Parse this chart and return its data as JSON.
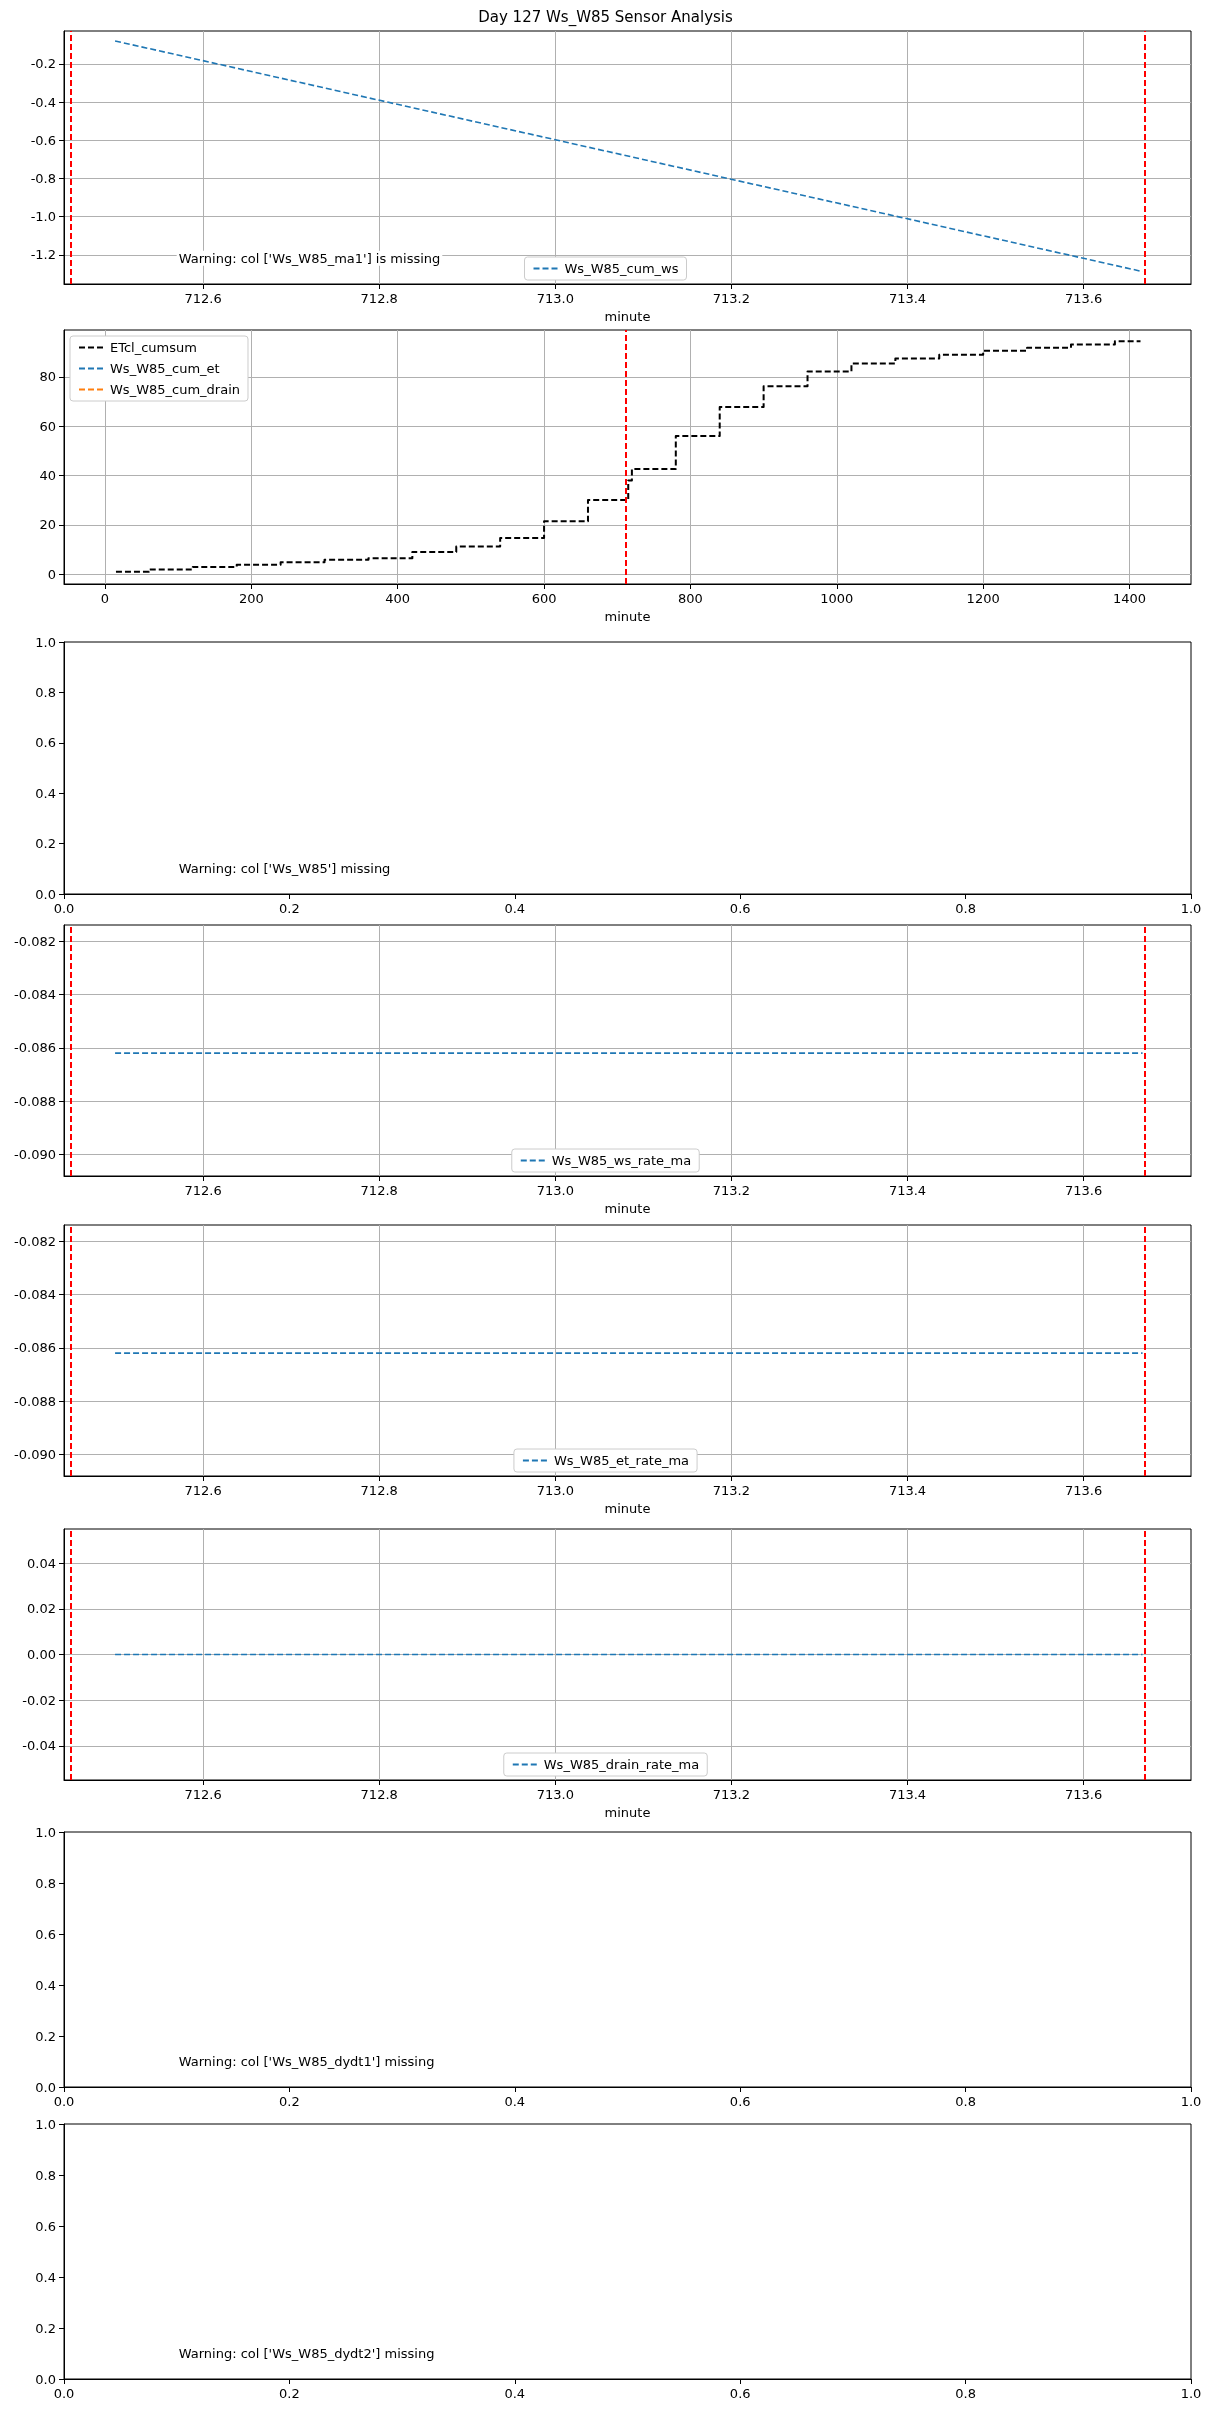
{
  "chart_data": [
    {
      "type": "line",
      "title": "Day 127 Ws_W85 Sensor Analysis",
      "xlabel": "minute",
      "series": [
        {
          "name": "Ws_W85_cum_ws",
          "color": "#1f77b4",
          "x": [
            712.5,
            713.667
          ],
          "values": [
            -0.08,
            -1.287
          ]
        }
      ],
      "line_style": "dashed",
      "xlim": [
        712.442,
        713.722
      ],
      "xticks": [
        712.6,
        712.8,
        {
          "value": 713,
          "label": "713.0"
        },
        713.2,
        713.4,
        713.6
      ],
      "ylim": [
        -1.352,
        -0.028
      ],
      "yticks": [
        -1.2,
        {
          "value": -1,
          "label": "-1.0"
        },
        -0.8,
        -0.6,
        -0.4,
        -0.2
      ],
      "grid": true,
      "legend": "bottom",
      "ref_lines": [
        {
          "axis": "x",
          "value": 712.45,
          "color": "#ff0000",
          "line_style": "dashed"
        },
        {
          "axis": "x",
          "value": 713.67,
          "color": "#ff0000",
          "line_style": "dashed"
        }
      ],
      "annotations": [
        "Warning: col ['Ws_W85_ma1'] is missing"
      ]
    },
    {
      "type": "step",
      "xlabel": "minute",
      "series": [
        {
          "name": "ETcl_cumsum",
          "color": "#000000",
          "x": [
            15,
            60,
            120,
            180,
            240,
            300,
            360,
            420,
            480,
            540,
            600,
            660,
            715,
            720,
            780,
            840,
            900,
            960,
            1020,
            1080,
            1140,
            1200,
            1260,
            1320,
            1380,
            1415
          ],
          "values": [
            1,
            1.9,
            2.9,
            3.8,
            4.8,
            5.8,
            6.4,
            9,
            11.2,
            14.7,
            21.4,
            30.1,
            38,
            42.6,
            56,
            67.8,
            76.2,
            82.2,
            85.4,
            87.4,
            89,
            90.6,
            91.8,
            93.1,
            94.4,
            94.4
          ]
        },
        {
          "name": "Ws_W85_cum_et",
          "color": "#1f77b4"
        },
        {
          "name": "Ws_W85_cum_drain",
          "color": "#ff7f0e"
        }
      ],
      "line_style": "dashed",
      "xlim": [
        -56,
        1484
      ],
      "xticks": [
        0,
        200,
        400,
        600,
        800,
        1000,
        1200,
        1400
      ],
      "ylim": [
        -4,
        99
      ],
      "yticks": [
        0,
        20,
        40,
        60,
        80
      ],
      "grid": true,
      "legend": "top left",
      "ref_lines": [
        {
          "axis": "x",
          "value": 712,
          "color": "#ff0000",
          "line_style": "dashed"
        }
      ]
    },
    {
      "type": "line",
      "xlim": [
        0,
        1
      ],
      "xticks": [
        {
          "value": 0,
          "label": "0.0"
        },
        0.2,
        0.4,
        0.6,
        0.8,
        {
          "value": 1,
          "label": "1.0"
        }
      ],
      "ylim": [
        0,
        1
      ],
      "yticks": [
        {
          "value": 0,
          "label": "0.0"
        },
        0.2,
        0.4,
        0.6,
        0.8,
        {
          "value": 1,
          "label": "1.0"
        }
      ],
      "annotations": [
        "Warning: col ['Ws_W85'] missing"
      ]
    },
    {
      "type": "line",
      "xlabel": "minute",
      "series": [
        {
          "name": "Ws_W85_ws_rate_ma",
          "color": "#1f77b4",
          "x": [
            712.5,
            713.667
          ],
          "values": [
            -0.0862,
            -0.0862
          ]
        }
      ],
      "line_style": "dashed",
      "xlim": [
        712.442,
        713.722
      ],
      "xticks": [
        712.6,
        712.8,
        {
          "value": 713,
          "label": "713.0"
        },
        713.2,
        713.4,
        713.6
      ],
      "ylim": [
        -0.0908,
        -0.0814
      ],
      "yticks": [
        {
          "value": -0.09,
          "label": "-0.090"
        },
        -0.088,
        -0.086,
        -0.084,
        -0.082
      ],
      "grid": true,
      "legend": "bottom",
      "ref_lines": [
        {
          "axis": "x",
          "value": 712.45,
          "color": "#ff0000",
          "line_style": "dashed"
        },
        {
          "axis": "x",
          "value": 713.67,
          "color": "#ff0000",
          "line_style": "dashed"
        }
      ]
    },
    {
      "type": "line",
      "xlabel": "minute",
      "series": [
        {
          "name": "Ws_W85_et_rate_ma",
          "color": "#1f77b4",
          "x": [
            712.5,
            713.667
          ],
          "values": [
            -0.0862,
            -0.0862
          ]
        }
      ],
      "line_style": "dashed",
      "xlim": [
        712.442,
        713.722
      ],
      "xticks": [
        712.6,
        712.8,
        {
          "value": 713,
          "label": "713.0"
        },
        713.2,
        713.4,
        713.6
      ],
      "ylim": [
        -0.0908,
        -0.0814
      ],
      "yticks": [
        {
          "value": -0.09,
          "label": "-0.090"
        },
        -0.088,
        -0.086,
        -0.084,
        -0.082
      ],
      "grid": true,
      "legend": "bottom",
      "ref_lines": [
        {
          "axis": "x",
          "value": 712.45,
          "color": "#ff0000",
          "line_style": "dashed"
        },
        {
          "axis": "x",
          "value": 713.67,
          "color": "#ff0000",
          "line_style": "dashed"
        }
      ]
    },
    {
      "type": "line",
      "xlabel": "minute",
      "series": [
        {
          "name": "Ws_W85_drain_rate_ma",
          "color": "#1f77b4",
          "x": [
            712.5,
            713.667
          ],
          "values": [
            0,
            0
          ]
        }
      ],
      "line_style": "dashed",
      "xlim": [
        712.442,
        713.722
      ],
      "xticks": [
        712.6,
        712.8,
        {
          "value": 713,
          "label": "713.0"
        },
        713.2,
        713.4,
        713.6
      ],
      "ylim": [
        -0.055,
        0.055
      ],
      "yticks": [
        -0.04,
        -0.02,
        {
          "value": 0,
          "label": "0.00"
        },
        0.02,
        0.04
      ],
      "grid": true,
      "legend": "bottom",
      "ref_lines": [
        {
          "axis": "x",
          "value": 712.45,
          "color": "#ff0000",
          "line_style": "dashed"
        },
        {
          "axis": "x",
          "value": 713.67,
          "color": "#ff0000",
          "line_style": "dashed"
        }
      ]
    },
    {
      "type": "line",
      "xlim": [
        0,
        1
      ],
      "xticks": [
        {
          "value": 0,
          "label": "0.0"
        },
        0.2,
        0.4,
        0.6,
        0.8,
        {
          "value": 1,
          "label": "1.0"
        }
      ],
      "ylim": [
        0,
        1
      ],
      "yticks": [
        {
          "value": 0,
          "label": "0.0"
        },
        0.2,
        0.4,
        0.6,
        0.8,
        {
          "value": 1,
          "label": "1.0"
        }
      ],
      "annotations": [
        "Warning: col ['Ws_W85_dydt1'] missing"
      ]
    },
    {
      "type": "line",
      "xlim": [
        0,
        1
      ],
      "xticks": [
        {
          "value": 0,
          "label": "0.0"
        },
        0.2,
        0.4,
        0.6,
        0.8,
        {
          "value": 1,
          "label": "1.0"
        }
      ],
      "ylim": [
        0,
        1
      ],
      "yticks": [
        {
          "value": 0,
          "label": "0.0"
        },
        0.2,
        0.4,
        0.6,
        0.8,
        {
          "value": 1,
          "label": "1.0"
        }
      ],
      "annotations": [
        "Warning: col ['Ws_W85_dydt2'] missing"
      ]
    }
  ]
}
